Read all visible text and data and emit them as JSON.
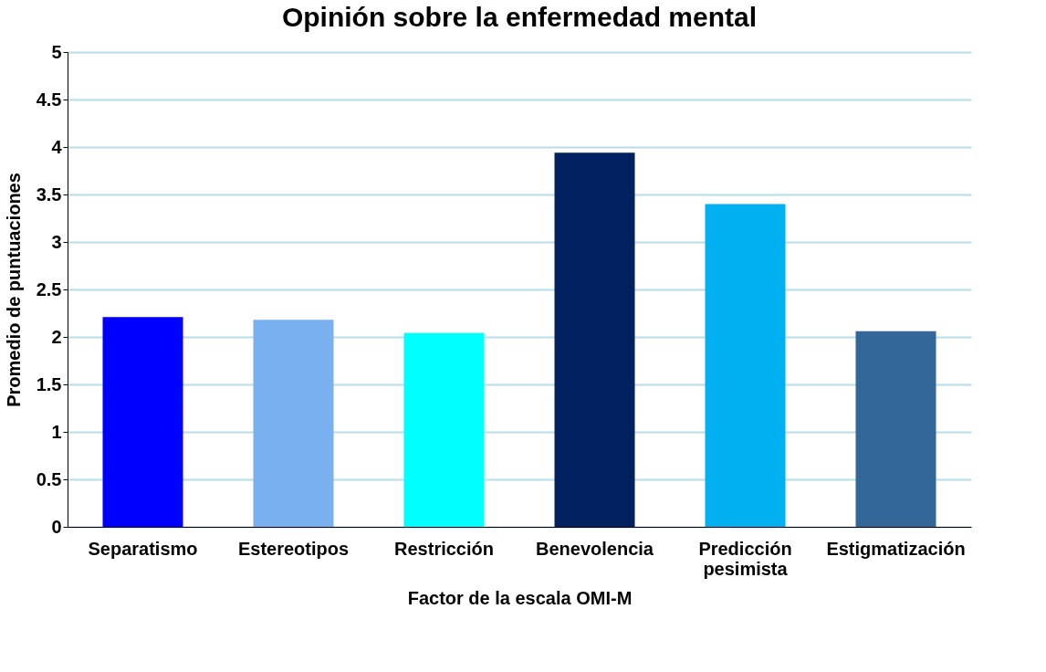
{
  "chart_data": {
    "type": "bar",
    "title": "Opinión sobre la enfermedad mental",
    "xlabel": "Factor de la escala OMI-M",
    "ylabel": "Promedio de puntuaciones",
    "categories": [
      "Separatismo",
      "Estereotipos",
      "Restricción",
      "Benevolencia",
      "Predicción pesimista",
      "Estigmatización"
    ],
    "values": [
      2.21,
      2.18,
      2.04,
      3.94,
      3.4,
      2.06
    ],
    "colors": [
      "#0000ff",
      "#78b0f0",
      "#00ffff",
      "#002060",
      "#00b0f0",
      "#336699"
    ],
    "ylim": [
      0,
      5
    ],
    "yticks": [
      0,
      0.5,
      1,
      1.5,
      2,
      2.5,
      3,
      3.5,
      4,
      4.5,
      5
    ],
    "grid": "y",
    "legend": false
  }
}
